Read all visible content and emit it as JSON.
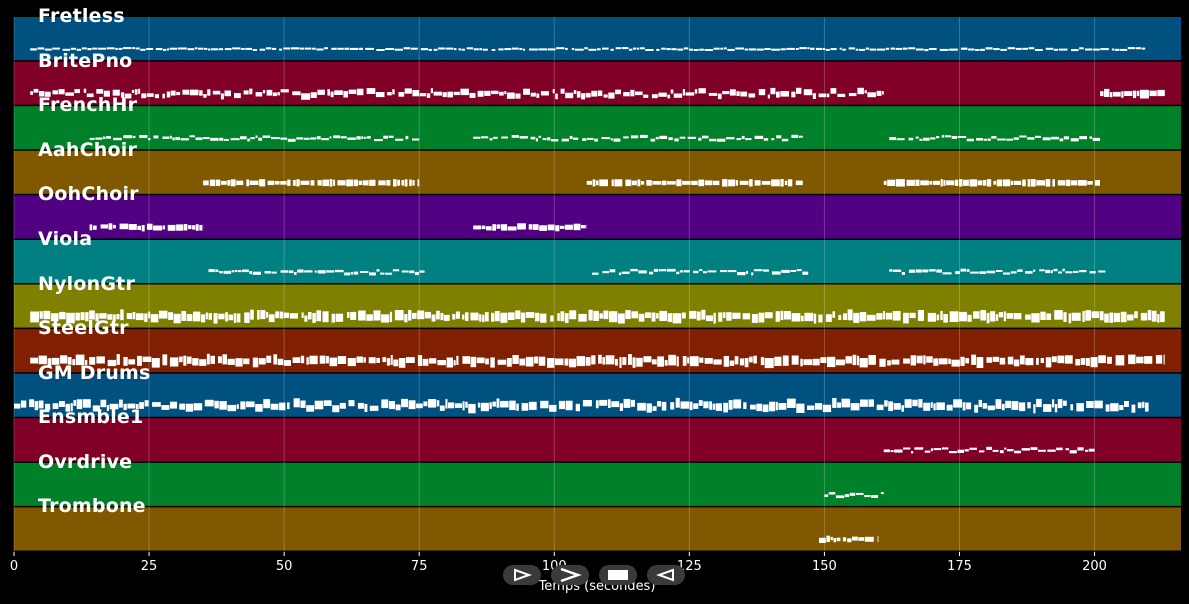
{
  "tracks": [
    {
      "name": "Fretless",
      "color": "#005080",
      "activity": [
        [
          3,
          210,
          2,
          1
        ]
      ]
    },
    {
      "name": "BritePno",
      "color": "#800028",
      "activity": [
        [
          3,
          161,
          6,
          3
        ],
        [
          201,
          213,
          8,
          1
        ]
      ]
    },
    {
      "name": "FrenchHr",
      "color": "#008028",
      "activity": [
        [
          14,
          75,
          3,
          2
        ],
        [
          85,
          146,
          3,
          2
        ],
        [
          162,
          201,
          3,
          2
        ]
      ]
    },
    {
      "name": "AahChoir",
      "color": "#805800",
      "activity": [
        [
          35,
          75,
          7,
          0
        ],
        [
          106,
          146,
          7,
          0
        ],
        [
          161,
          201,
          7,
          0
        ]
      ]
    },
    {
      "name": "OohChoir",
      "color": "#500080",
      "activity": [
        [
          14,
          35,
          6,
          1
        ],
        [
          85,
          106,
          6,
          1
        ]
      ]
    },
    {
      "name": "Viola",
      "color": "#008080",
      "activity": [
        [
          36,
          76,
          3,
          2
        ],
        [
          107,
          147,
          3,
          2
        ],
        [
          162,
          202,
          3,
          2
        ]
      ]
    },
    {
      "name": "NylonGtr",
      "color": "#808000",
      "activity": [
        [
          3,
          213,
          10,
          2
        ]
      ]
    },
    {
      "name": "SteelGtr",
      "color": "#802000",
      "activity": [
        [
          3,
          213,
          10,
          2
        ]
      ]
    },
    {
      "name": "GM Drums",
      "color": "#005080",
      "activity": [
        [
          0,
          210,
          9,
          3
        ]
      ]
    },
    {
      "name": "Ensmble1",
      "color": "#800028",
      "activity": [
        [
          161,
          200,
          3,
          2
        ]
      ]
    },
    {
      "name": "Ovrdrive",
      "color": "#008028",
      "activity": [
        [
          150,
          161,
          3,
          2
        ]
      ]
    },
    {
      "name": "Trombone",
      "color": "#805800",
      "activity": [
        [
          149,
          160,
          6,
          1
        ]
      ]
    }
  ],
  "x_axis": {
    "label": "Temps (secondes)",
    "range": [
      0,
      216
    ],
    "ticks": [
      0,
      25,
      50,
      75,
      100,
      125,
      150,
      175,
      200
    ]
  },
  "controls": [
    {
      "name": "play-outline-button",
      "icon": "play-outline-icon"
    },
    {
      "name": "forward-button",
      "icon": "forward-chevron-icon"
    },
    {
      "name": "stop-button",
      "icon": "stop-icon"
    },
    {
      "name": "back-button",
      "icon": "back-outline-icon"
    }
  ],
  "colors": {
    "background": "#000000",
    "note": "#ffffff",
    "grid": "#ffffff"
  }
}
